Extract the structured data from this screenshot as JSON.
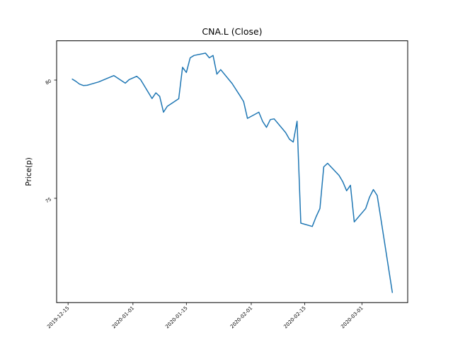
{
  "title": "CNA.L (Close)",
  "colors": {
    "line": "#1f77b4",
    "axis": "#000000",
    "background": "#ffffff",
    "text": "#000000"
  },
  "chart_data": {
    "type": "line",
    "title": "CNA.L (Close)",
    "xlabel": "",
    "ylabel": "Price(p)",
    "legend": false,
    "grid": false,
    "xlim": [
      "2019-12-12",
      "2020-03-13"
    ],
    "ylim": [
      70.59,
      81.66
    ],
    "xticks": [
      {
        "label": "2019-12-15",
        "date": "2019-12-15"
      },
      {
        "label": "2020-01-01",
        "date": "2020-01-01"
      },
      {
        "label": "2020-01-15",
        "date": "2020-01-15"
      },
      {
        "label": "2020-02-01",
        "date": "2020-02-01"
      },
      {
        "label": "2020-02-15",
        "date": "2020-02-15"
      },
      {
        "label": "2020-03-01",
        "date": "2020-03-01"
      }
    ],
    "yticks": [
      {
        "label": "75",
        "value": 75
      },
      {
        "label": "80",
        "value": 80
      }
    ],
    "series": [
      {
        "name": "CNA.L Close",
        "color": "#1f77b4",
        "points": [
          [
            "2019-12-16",
            80.05
          ],
          [
            "2019-12-17",
            79.95
          ],
          [
            "2019-12-18",
            79.83
          ],
          [
            "2019-12-19",
            79.77
          ],
          [
            "2019-12-20",
            79.78
          ],
          [
            "2019-12-23",
            79.92
          ],
          [
            "2019-12-24",
            79.99
          ],
          [
            "2019-12-27",
            80.19
          ],
          [
            "2019-12-30",
            79.87
          ],
          [
            "2019-12-31",
            80.02
          ],
          [
            "2020-01-02",
            80.16
          ],
          [
            "2020-01-03",
            80.02
          ],
          [
            "2020-01-06",
            79.22
          ],
          [
            "2020-01-07",
            79.46
          ],
          [
            "2020-01-08",
            79.31
          ],
          [
            "2020-01-09",
            78.64
          ],
          [
            "2020-01-10",
            78.89
          ],
          [
            "2020-01-13",
            79.21
          ],
          [
            "2020-01-14",
            80.54
          ],
          [
            "2020-01-15",
            80.32
          ],
          [
            "2020-01-16",
            80.94
          ],
          [
            "2020-01-17",
            81.04
          ],
          [
            "2020-01-20",
            81.14
          ],
          [
            "2020-01-21",
            80.94
          ],
          [
            "2020-01-22",
            81.04
          ],
          [
            "2020-01-23",
            80.25
          ],
          [
            "2020-01-24",
            80.44
          ],
          [
            "2020-01-27",
            79.85
          ],
          [
            "2020-01-28",
            79.6
          ],
          [
            "2020-01-29",
            79.35
          ],
          [
            "2020-01-30",
            79.09
          ],
          [
            "2020-01-31",
            78.38
          ],
          [
            "2020-02-03",
            78.64
          ],
          [
            "2020-02-04",
            78.25
          ],
          [
            "2020-02-05",
            78.0
          ],
          [
            "2020-02-06",
            78.33
          ],
          [
            "2020-02-07",
            78.36
          ],
          [
            "2020-02-10",
            77.78
          ],
          [
            "2020-02-11",
            77.5
          ],
          [
            "2020-02-12",
            77.38
          ],
          [
            "2020-02-13",
            78.26
          ],
          [
            "2020-02-14",
            73.95
          ],
          [
            "2020-02-17",
            73.81
          ],
          [
            "2020-02-18",
            74.22
          ],
          [
            "2020-02-19",
            74.57
          ],
          [
            "2020-02-20",
            76.33
          ],
          [
            "2020-02-21",
            76.48
          ],
          [
            "2020-02-24",
            75.97
          ],
          [
            "2020-02-25",
            75.7
          ],
          [
            "2020-02-26",
            75.32
          ],
          [
            "2020-02-27",
            75.55
          ],
          [
            "2020-02-28",
            74.0
          ],
          [
            "2020-03-02",
            74.57
          ],
          [
            "2020-03-03",
            75.05
          ],
          [
            "2020-03-04",
            75.37
          ],
          [
            "2020-03-05",
            75.12
          ],
          [
            "2020-03-06",
            74.1
          ],
          [
            "2020-03-09",
            71.0
          ]
        ]
      }
    ]
  }
}
